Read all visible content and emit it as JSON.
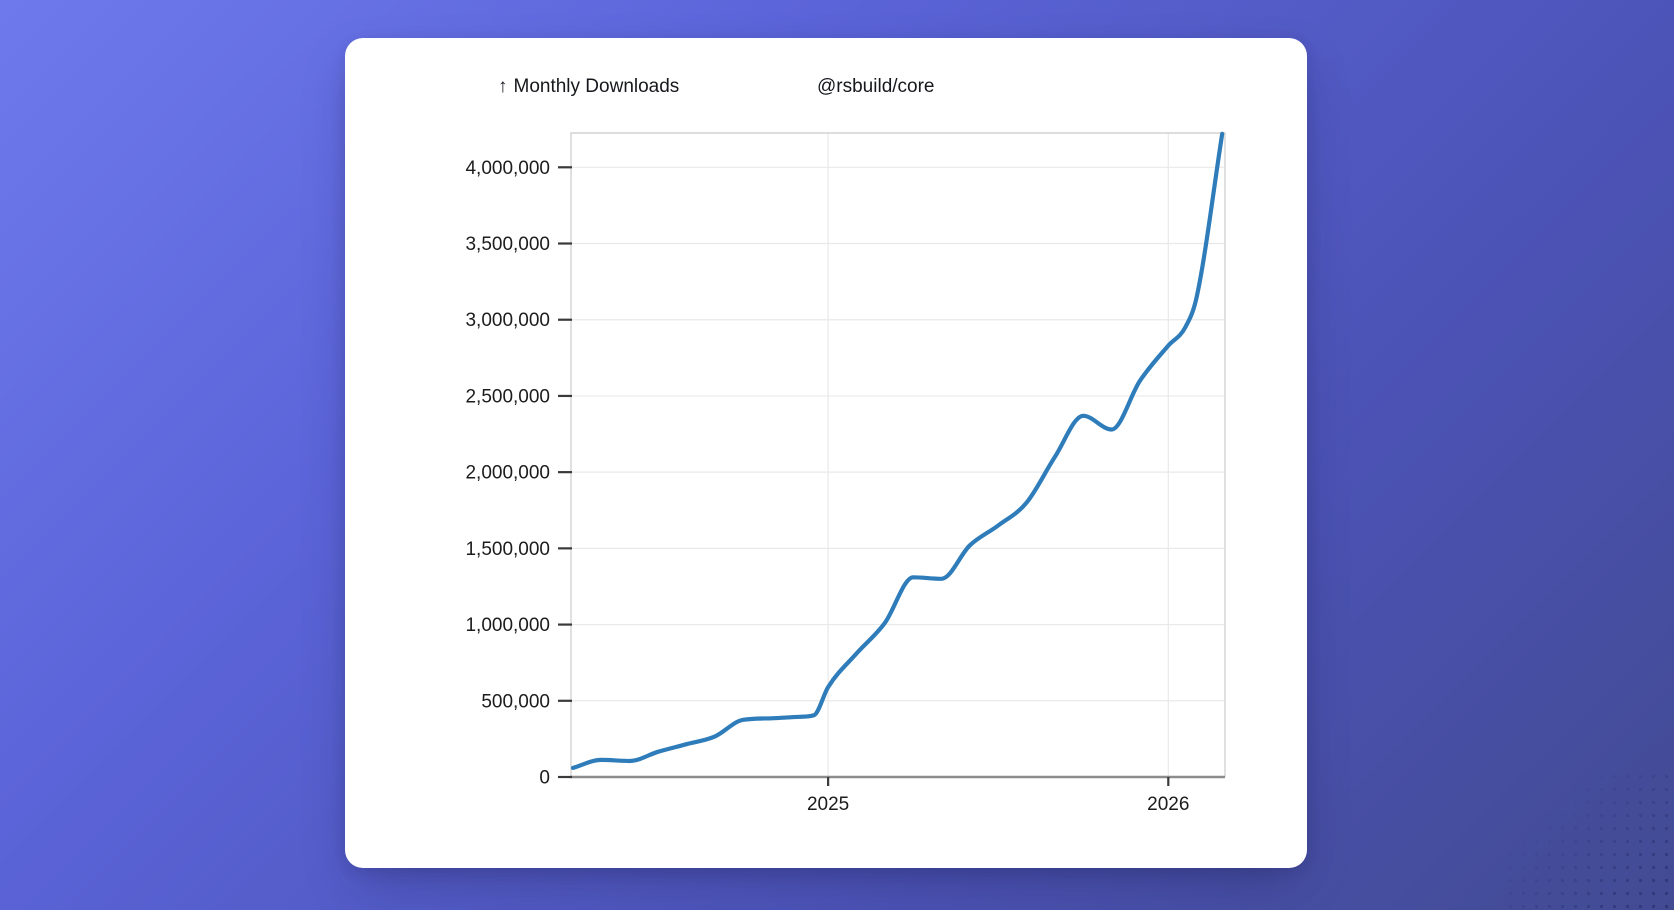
{
  "background": {
    "gradient_from": "#6e7aec",
    "gradient_to": "#424b92",
    "corner_dot_color": "#1a2058"
  },
  "card": {
    "title_arrow": "↑",
    "title": "Monthly Downloads",
    "package_name": "@rsbuild/core"
  },
  "chart_data": {
    "type": "line",
    "title": "Monthly Downloads",
    "series_name": "@rsbuild/core",
    "line_color": "#2e7cba",
    "grid": true,
    "legend": "none",
    "x_axis": {
      "unit": "months since 2024-04",
      "range_t": [
        -0.07,
        23.0
      ],
      "ticks": [
        {
          "t": 9,
          "label": "2025"
        },
        {
          "t": 21,
          "label": "2026"
        }
      ]
    },
    "y_axis": {
      "range": [
        0,
        4225000
      ],
      "ticks": [
        0,
        500000,
        1000000,
        1500000,
        2000000,
        2500000,
        3000000,
        3500000,
        4000000
      ],
      "format": "thousands-comma"
    },
    "points": [
      {
        "month": "2024-04",
        "t": 0,
        "value": 60000
      },
      {
        "month": "2024-05",
        "t": 1,
        "value": 112000
      },
      {
        "month": "2024-06",
        "t": 2,
        "value": 105000
      },
      {
        "month": "2024-07",
        "t": 3,
        "value": 165000
      },
      {
        "month": "2024-08",
        "t": 4,
        "value": 215000
      },
      {
        "month": "2024-09",
        "t": 5,
        "value": 265000
      },
      {
        "month": "2024-10",
        "t": 6,
        "value": 375000
      },
      {
        "month": "2024-11",
        "t": 7,
        "value": 385000
      },
      {
        "month": "2024-12",
        "t": 8,
        "value": 395000
      },
      {
        "month": "",
        "t": 8.5,
        "value": 405000
      },
      {
        "month": "2025-01",
        "t": 9,
        "value": 590000
      },
      {
        "month": "2025-02",
        "t": 10,
        "value": 810000
      },
      {
        "month": "2025-03",
        "t": 11,
        "value": 1010000
      },
      {
        "month": "2025-04",
        "t": 12,
        "value": 1310000
      },
      {
        "month": "2025-05",
        "t": 13,
        "value": 1300000
      },
      {
        "month": "2025-06",
        "t": 14,
        "value": 1520000
      },
      {
        "month": "2025-07",
        "t": 15,
        "value": 1650000
      },
      {
        "month": "2025-08",
        "t": 16,
        "value": 1800000
      },
      {
        "month": "2025-09",
        "t": 17,
        "value": 2100000
      },
      {
        "month": "2025-10",
        "t": 18,
        "value": 2370000
      },
      {
        "month": "2025-11",
        "t": 19,
        "value": 2280000
      },
      {
        "month": "2025-12",
        "t": 20,
        "value": 2600000
      },
      {
        "month": "2026-01",
        "t": 21,
        "value": 2830000
      },
      {
        "month": "",
        "t": 21.6,
        "value": 2950000
      },
      {
        "month": "2026-02",
        "t": 22,
        "value": 3150000
      },
      {
        "month": "2026-02 (end)",
        "t": 22.9,
        "value": 4220000
      }
    ]
  }
}
